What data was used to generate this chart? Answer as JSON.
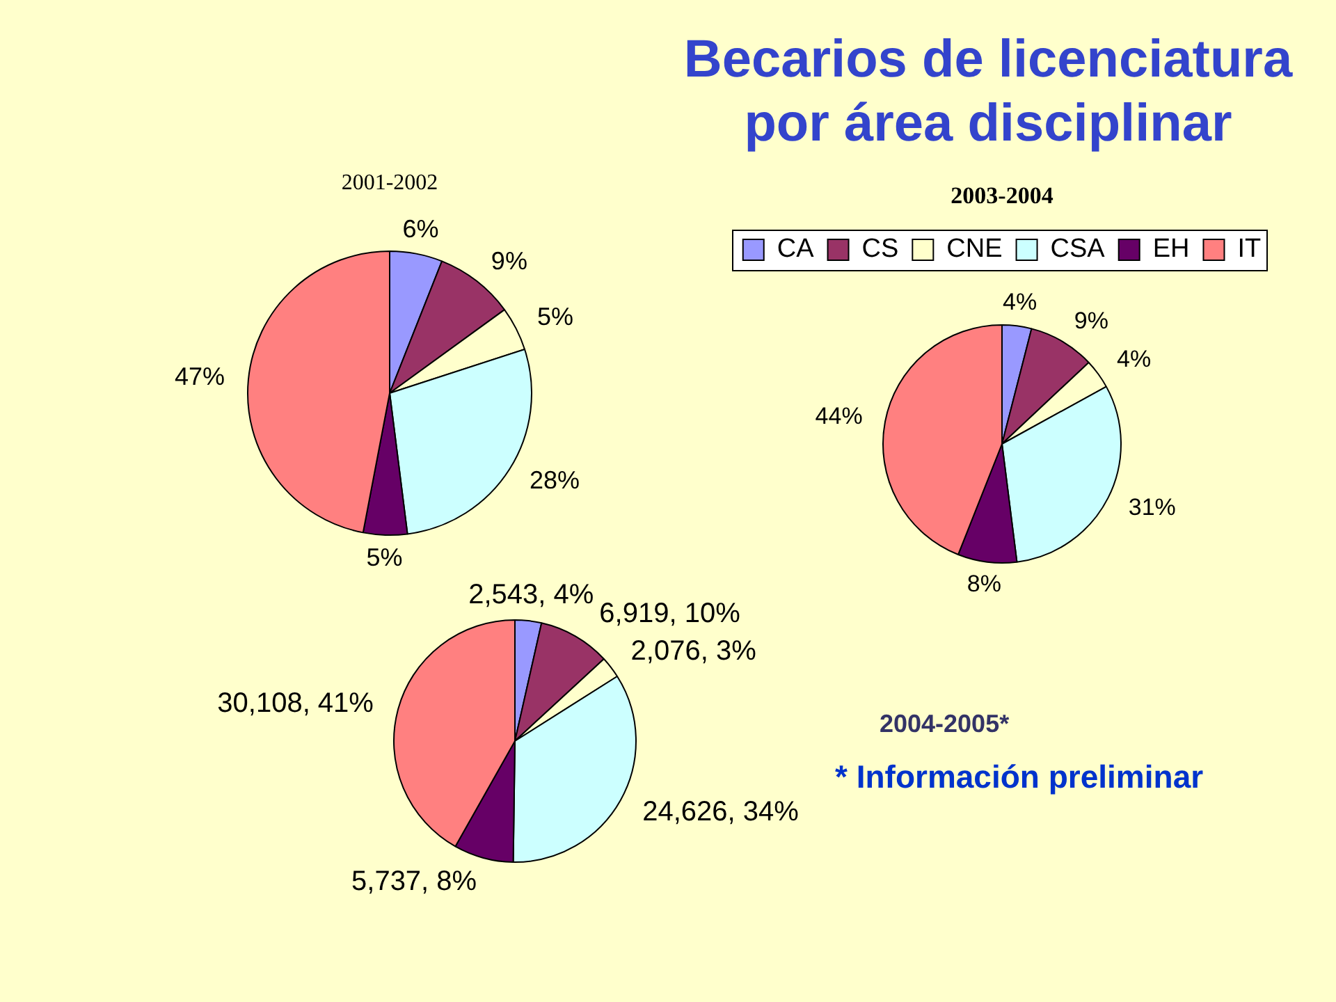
{
  "chart_data": [
    {
      "type": "pie",
      "title": "Becarios de licenciatura por área disciplinar",
      "subtitle": "2001-2002",
      "categories": [
        null,
        null,
        null,
        null,
        null,
        null
      ],
      "values": [
        6,
        9,
        5,
        28,
        5,
        47
      ],
      "colors": [
        "#9999ff",
        "#993366",
        "#ffffcc",
        "#ccffff",
        "#660066",
        "#ff8080"
      ],
      "value_labels": [
        "6%",
        "9%",
        "5%",
        "28%",
        "5%",
        "47%"
      ],
      "legend": false
    },
    {
      "type": "pie",
      "title": "2003-2004",
      "categories": [
        "CA",
        "CS",
        "CNE",
        "CSA",
        "EH",
        "IT"
      ],
      "values": [
        4,
        9,
        4,
        31,
        8,
        44
      ],
      "colors": [
        "#9999ff",
        "#993366",
        "#ffffcc",
        "#ccffff",
        "#660066",
        "#ff8080"
      ],
      "value_labels": [
        "4%",
        "9%",
        "4%",
        "31%",
        "8%",
        "44%"
      ],
      "legend": "top"
    },
    {
      "type": "pie",
      "title": "2004-2005*",
      "categories": [
        null,
        null,
        null,
        null,
        null,
        null
      ],
      "values": [
        2543,
        6919,
        2076,
        24626,
        5737,
        30108
      ],
      "colors": [
        "#9999ff",
        "#993366",
        "#ffffcc",
        "#ccffff",
        "#660066",
        "#ff8080"
      ],
      "value_labels": [
        "2,543, 4%",
        "6,919, 10%",
        "2,076, 3%",
        "24,626, 34%",
        "5,737, 8%",
        "30,108, 41%"
      ],
      "legend": false,
      "annotations": [
        "* Información preliminar"
      ]
    }
  ]
}
